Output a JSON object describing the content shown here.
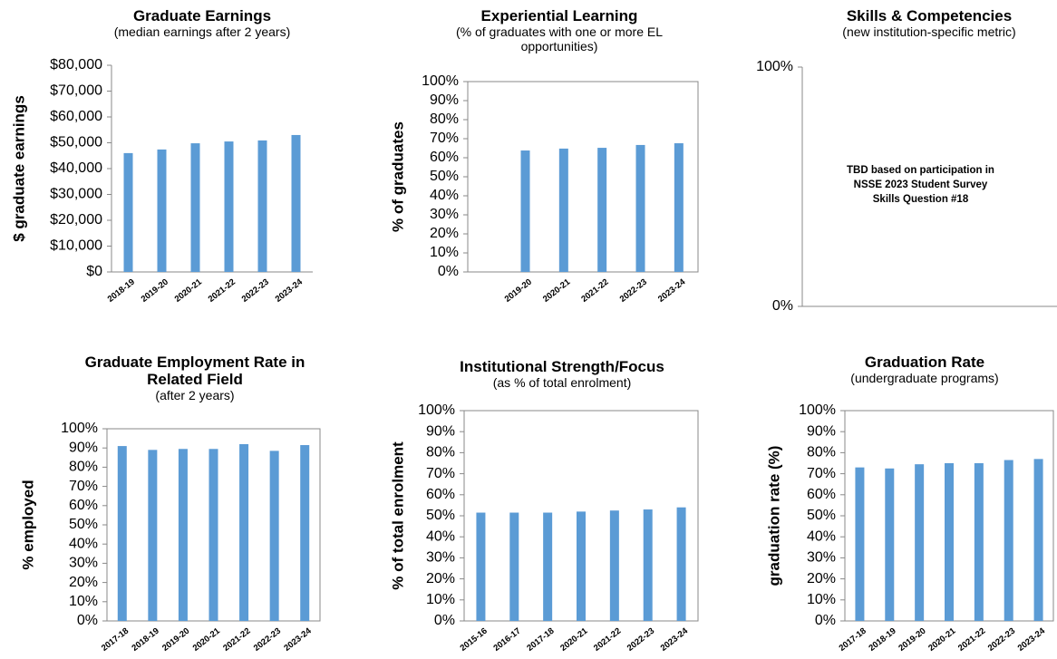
{
  "chart_data": [
    {
      "type": "bar",
      "title": "Graduate Earnings",
      "subtitle": "(median earnings after 2 years)",
      "y_label": "$ graduate earnings",
      "categories": [
        "2018-19",
        "2019-20",
        "2020-21",
        "2021-22",
        "2022-23",
        "2023-24"
      ],
      "values": [
        46000,
        47400,
        49800,
        50500,
        50900,
        53000
      ],
      "color": "#5b9bd5",
      "ylim": [
        0,
        80000
      ],
      "yticks": [
        {
          "value": 0,
          "label": "$0"
        },
        {
          "value": 10000,
          "label": "$10,000"
        },
        {
          "value": 20000,
          "label": "$20,000"
        },
        {
          "value": 30000,
          "label": "$30,000"
        },
        {
          "value": 40000,
          "label": "$40,000"
        },
        {
          "value": 50000,
          "label": "$50,000"
        },
        {
          "value": 60000,
          "label": "$60,000"
        },
        {
          "value": 70000,
          "label": "$70,000"
        },
        {
          "value": 80000,
          "label": "$80,000"
        }
      ]
    },
    {
      "type": "bar",
      "title": "Experiential Learning",
      "subtitle": "(% of graduates with one or more EL opportunities)",
      "y_label": "% of graduates",
      "categories": [
        null,
        "2019-20",
        "2020-21",
        "2021-22",
        "2022-23",
        "2023-24"
      ],
      "values": [
        null,
        63.8,
        64.8,
        65.2,
        66.7,
        67.6
      ],
      "color": "#5b9bd5",
      "ylim": [
        0,
        100
      ],
      "yticks": [
        {
          "value": 0,
          "label": "0%"
        },
        {
          "value": 10,
          "label": "10%"
        },
        {
          "value": 20,
          "label": "20%"
        },
        {
          "value": 30,
          "label": "30%"
        },
        {
          "value": 40,
          "label": "40%"
        },
        {
          "value": 50,
          "label": "50%"
        },
        {
          "value": 60,
          "label": "60%"
        },
        {
          "value": 70,
          "label": "70%"
        },
        {
          "value": 80,
          "label": "80%"
        },
        {
          "value": 90,
          "label": "90%"
        },
        {
          "value": 100,
          "label": "100%"
        }
      ]
    },
    {
      "type": "bar",
      "title": "Skills & Competencies",
      "subtitle": "(new institution-specific metric)",
      "annotation": [
        "TBD based on participation in",
        "NSSE 2023 Student Survey",
        "Skills Question #18"
      ],
      "ylim": [
        0,
        100
      ],
      "yticks": [
        {
          "value": 0,
          "label": "0%"
        },
        {
          "value": 100,
          "label": "100%"
        }
      ]
    },
    {
      "type": "bar",
      "title": "Graduate Employment Rate in Related Field",
      "subtitle": "(after 2 years)",
      "y_label": "% employed",
      "categories": [
        "2017-18",
        "2018-19",
        "2019-20",
        "2020-21",
        "2021-22",
        "2022-23",
        "2023-24"
      ],
      "values": [
        91,
        89,
        89.5,
        89.5,
        92,
        88.5,
        91.5
      ],
      "color": "#5b9bd5",
      "ylim": [
        0,
        100
      ],
      "yticks": [
        {
          "value": 0,
          "label": "0%"
        },
        {
          "value": 10,
          "label": "10%"
        },
        {
          "value": 20,
          "label": "20%"
        },
        {
          "value": 30,
          "label": "30%"
        },
        {
          "value": 40,
          "label": "40%"
        },
        {
          "value": 50,
          "label": "50%"
        },
        {
          "value": 60,
          "label": "60%"
        },
        {
          "value": 70,
          "label": "70%"
        },
        {
          "value": 80,
          "label": "80%"
        },
        {
          "value": 90,
          "label": "90%"
        },
        {
          "value": 100,
          "label": "100%"
        }
      ]
    },
    {
      "type": "bar",
      "title": "Institutional Strength/Focus",
      "subtitle": "(as % of total enrolment)",
      "y_label": "% of total enrolment",
      "categories": [
        "2015-16",
        "2016-17",
        "2017-18",
        "2020-21",
        "2021-22",
        "2022-23",
        "2023-24"
      ],
      "values": [
        51.5,
        51.5,
        51.5,
        52,
        52.5,
        53,
        54
      ],
      "color": "#5b9bd5",
      "ylim": [
        0,
        100
      ],
      "yticks": [
        {
          "value": 0,
          "label": "0%"
        },
        {
          "value": 10,
          "label": "10%"
        },
        {
          "value": 20,
          "label": "20%"
        },
        {
          "value": 30,
          "label": "30%"
        },
        {
          "value": 40,
          "label": "40%"
        },
        {
          "value": 50,
          "label": "50%"
        },
        {
          "value": 60,
          "label": "60%"
        },
        {
          "value": 70,
          "label": "70%"
        },
        {
          "value": 80,
          "label": "80%"
        },
        {
          "value": 90,
          "label": "90%"
        },
        {
          "value": 100,
          "label": "100%"
        }
      ]
    },
    {
      "type": "bar",
      "title": "Graduation Rate",
      "subtitle": "(undergraduate programs)",
      "y_label": "graduation rate (%)",
      "categories": [
        "2017-18",
        "2018-19",
        "2019-20",
        "2020-21",
        "2021-22",
        "2022-23",
        "2023-24"
      ],
      "values": [
        73,
        72.5,
        74.5,
        75,
        75,
        76.5,
        77
      ],
      "color": "#5b9bd5",
      "ylim": [
        0,
        100
      ],
      "yticks": [
        {
          "value": 0,
          "label": "0%"
        },
        {
          "value": 10,
          "label": "10%"
        },
        {
          "value": 20,
          "label": "20%"
        },
        {
          "value": 30,
          "label": "30%"
        },
        {
          "value": 40,
          "label": "40%"
        },
        {
          "value": 50,
          "label": "50%"
        },
        {
          "value": 60,
          "label": "60%"
        },
        {
          "value": 70,
          "label": "70%"
        },
        {
          "value": 80,
          "label": "80%"
        },
        {
          "value": 90,
          "label": "90%"
        },
        {
          "value": 100,
          "label": "100%"
        }
      ]
    }
  ]
}
